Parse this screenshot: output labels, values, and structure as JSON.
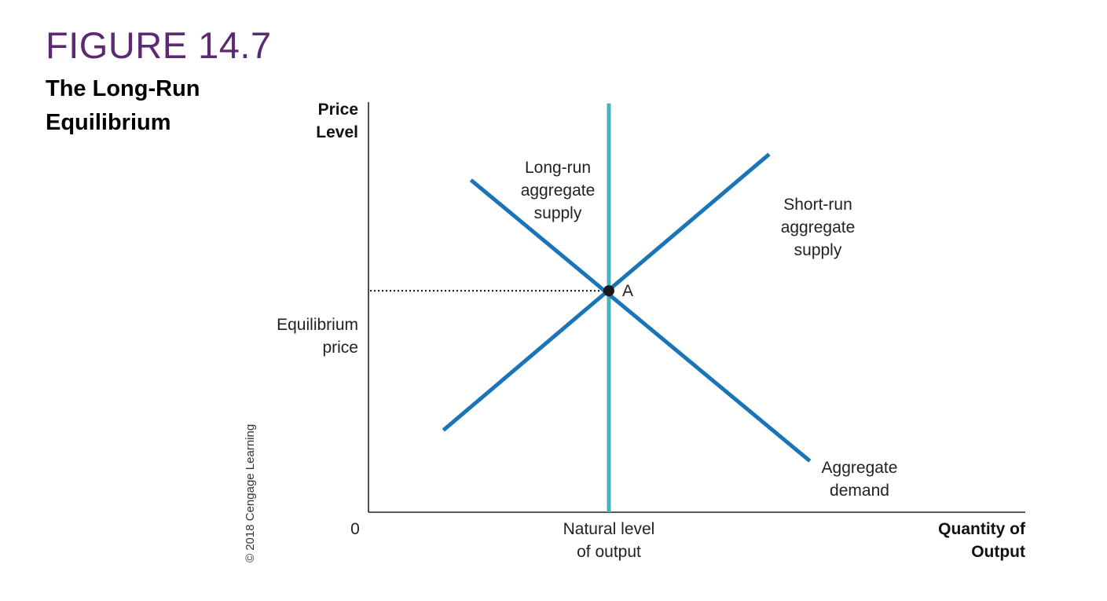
{
  "figure": {
    "number": "FIGURE 14.7",
    "title_line1": "The Long-Run",
    "title_line2": "Equilibrium"
  },
  "credit": "© 2018 Cengage Learning",
  "colors": {
    "figure_number": "#5b2a73",
    "curve_blue": "#1a74b8",
    "lras_teal": "#4ab3c3",
    "point": "#1a1a1a"
  },
  "chart_data": {
    "type": "line",
    "y_axis_label": [
      "Price",
      "Level"
    ],
    "x_axis_label": [
      "Quantity of",
      "Output"
    ],
    "origin_label": "0",
    "xlim": [
      0,
      10
    ],
    "ylim": [
      0,
      10
    ],
    "equilibrium_price_label": [
      "Equilibrium",
      "price"
    ],
    "natural_output_label": [
      "Natural level",
      "of output"
    ],
    "equilibrium": {
      "x": 3.66,
      "y": 5.4,
      "label": "A"
    },
    "series": [
      {
        "name": "Long-run aggregate supply",
        "label_lines": [
          "Long-run",
          "aggregate",
          "supply"
        ],
        "points": [
          [
            3.66,
            0
          ],
          [
            3.66,
            9.97
          ]
        ],
        "color": "#4ab3c3"
      },
      {
        "name": "Short-run aggregate supply",
        "label_lines": [
          "Short-run",
          "aggregate",
          "supply"
        ],
        "points": [
          [
            1.14,
            2.0
          ],
          [
            6.1,
            8.73
          ]
        ],
        "color": "#1a74b8"
      },
      {
        "name": "Aggregate demand",
        "label_lines": [
          "Aggregate",
          "demand"
        ],
        "points": [
          [
            1.56,
            8.1
          ],
          [
            6.72,
            1.25
          ]
        ],
        "color": "#1a74b8"
      }
    ]
  }
}
